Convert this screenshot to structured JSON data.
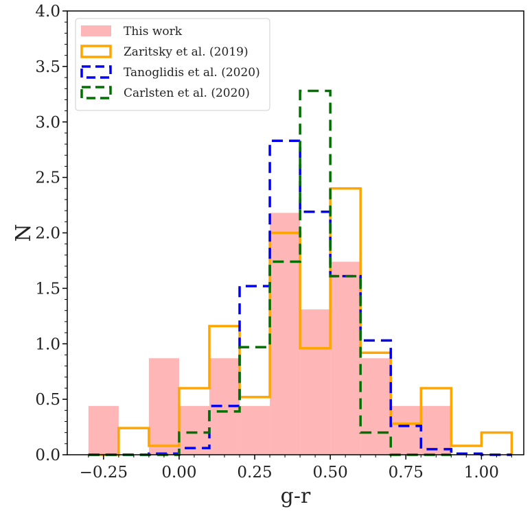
{
  "chart_data": {
    "type": "histogram",
    "title": "",
    "xlabel": "g-r",
    "ylabel": "N",
    "xlim": [
      -0.37,
      1.14
    ],
    "ylim": [
      0,
      4.0
    ],
    "xticks": [
      -0.25,
      0.0,
      0.25,
      0.5,
      0.75,
      1.0
    ],
    "xtick_labels": [
      "−0.25",
      "0.00",
      "0.25",
      "0.50",
      "0.75",
      "1.00"
    ],
    "yticks": [
      0.0,
      0.5,
      1.0,
      1.5,
      2.0,
      2.5,
      3.0,
      3.5,
      4.0
    ],
    "ytick_labels": [
      "0.0",
      "0.5",
      "1.0",
      "1.5",
      "2.0",
      "2.5",
      "3.0",
      "3.5",
      "4.0"
    ],
    "legend_position": "top-left",
    "series": [
      {
        "name": "This work",
        "style": "filled",
        "color": "#ffb6b6",
        "dash": "",
        "edges": [
          -0.3,
          -0.2,
          -0.1,
          0.0,
          0.1,
          0.2,
          0.3,
          0.4,
          0.5,
          0.6,
          0.7,
          0.8,
          0.9
        ],
        "values": [
          0.44,
          0.0,
          0.87,
          0.44,
          0.87,
          0.44,
          2.18,
          1.31,
          1.74,
          0.87,
          0.44,
          0.44
        ]
      },
      {
        "name": "Zaritsky et al. (2019)",
        "style": "step",
        "color": "#ffa500",
        "dash": "",
        "edges": [
          -0.3,
          -0.2,
          -0.1,
          0.0,
          0.1,
          0.2,
          0.3,
          0.4,
          0.5,
          0.6,
          0.7,
          0.8,
          0.9,
          1.0,
          1.1
        ],
        "values": [
          0.0,
          0.24,
          0.08,
          0.6,
          1.16,
          0.52,
          2.0,
          0.96,
          2.4,
          0.92,
          0.28,
          0.6,
          0.08,
          0.2
        ]
      },
      {
        "name": "Tanoglidis et al. (2020)",
        "style": "step",
        "color": "#0000ee",
        "dash": "16,9",
        "edges": [
          -0.3,
          -0.2,
          -0.1,
          0.0,
          0.1,
          0.2,
          0.3,
          0.4,
          0.5,
          0.6,
          0.7,
          0.8,
          0.9,
          1.0,
          1.1
        ],
        "values": [
          0.0,
          0.0,
          0.01,
          0.06,
          0.44,
          1.52,
          2.83,
          2.19,
          1.61,
          1.03,
          0.26,
          0.05,
          0.01,
          0.0
        ]
      },
      {
        "name": "Carlsten et al. (2020)",
        "style": "step",
        "color": "#007000",
        "dash": "16,9",
        "edges": [
          -0.3,
          -0.2,
          -0.1,
          0.0,
          0.1,
          0.2,
          0.3,
          0.4,
          0.5,
          0.6,
          0.7,
          0.8,
          0.9
        ],
        "values": [
          0.0,
          0.0,
          0.0,
          0.2,
          0.39,
          0.97,
          1.74,
          3.28,
          1.61,
          0.2,
          0.0,
          0.0
        ]
      }
    ]
  }
}
